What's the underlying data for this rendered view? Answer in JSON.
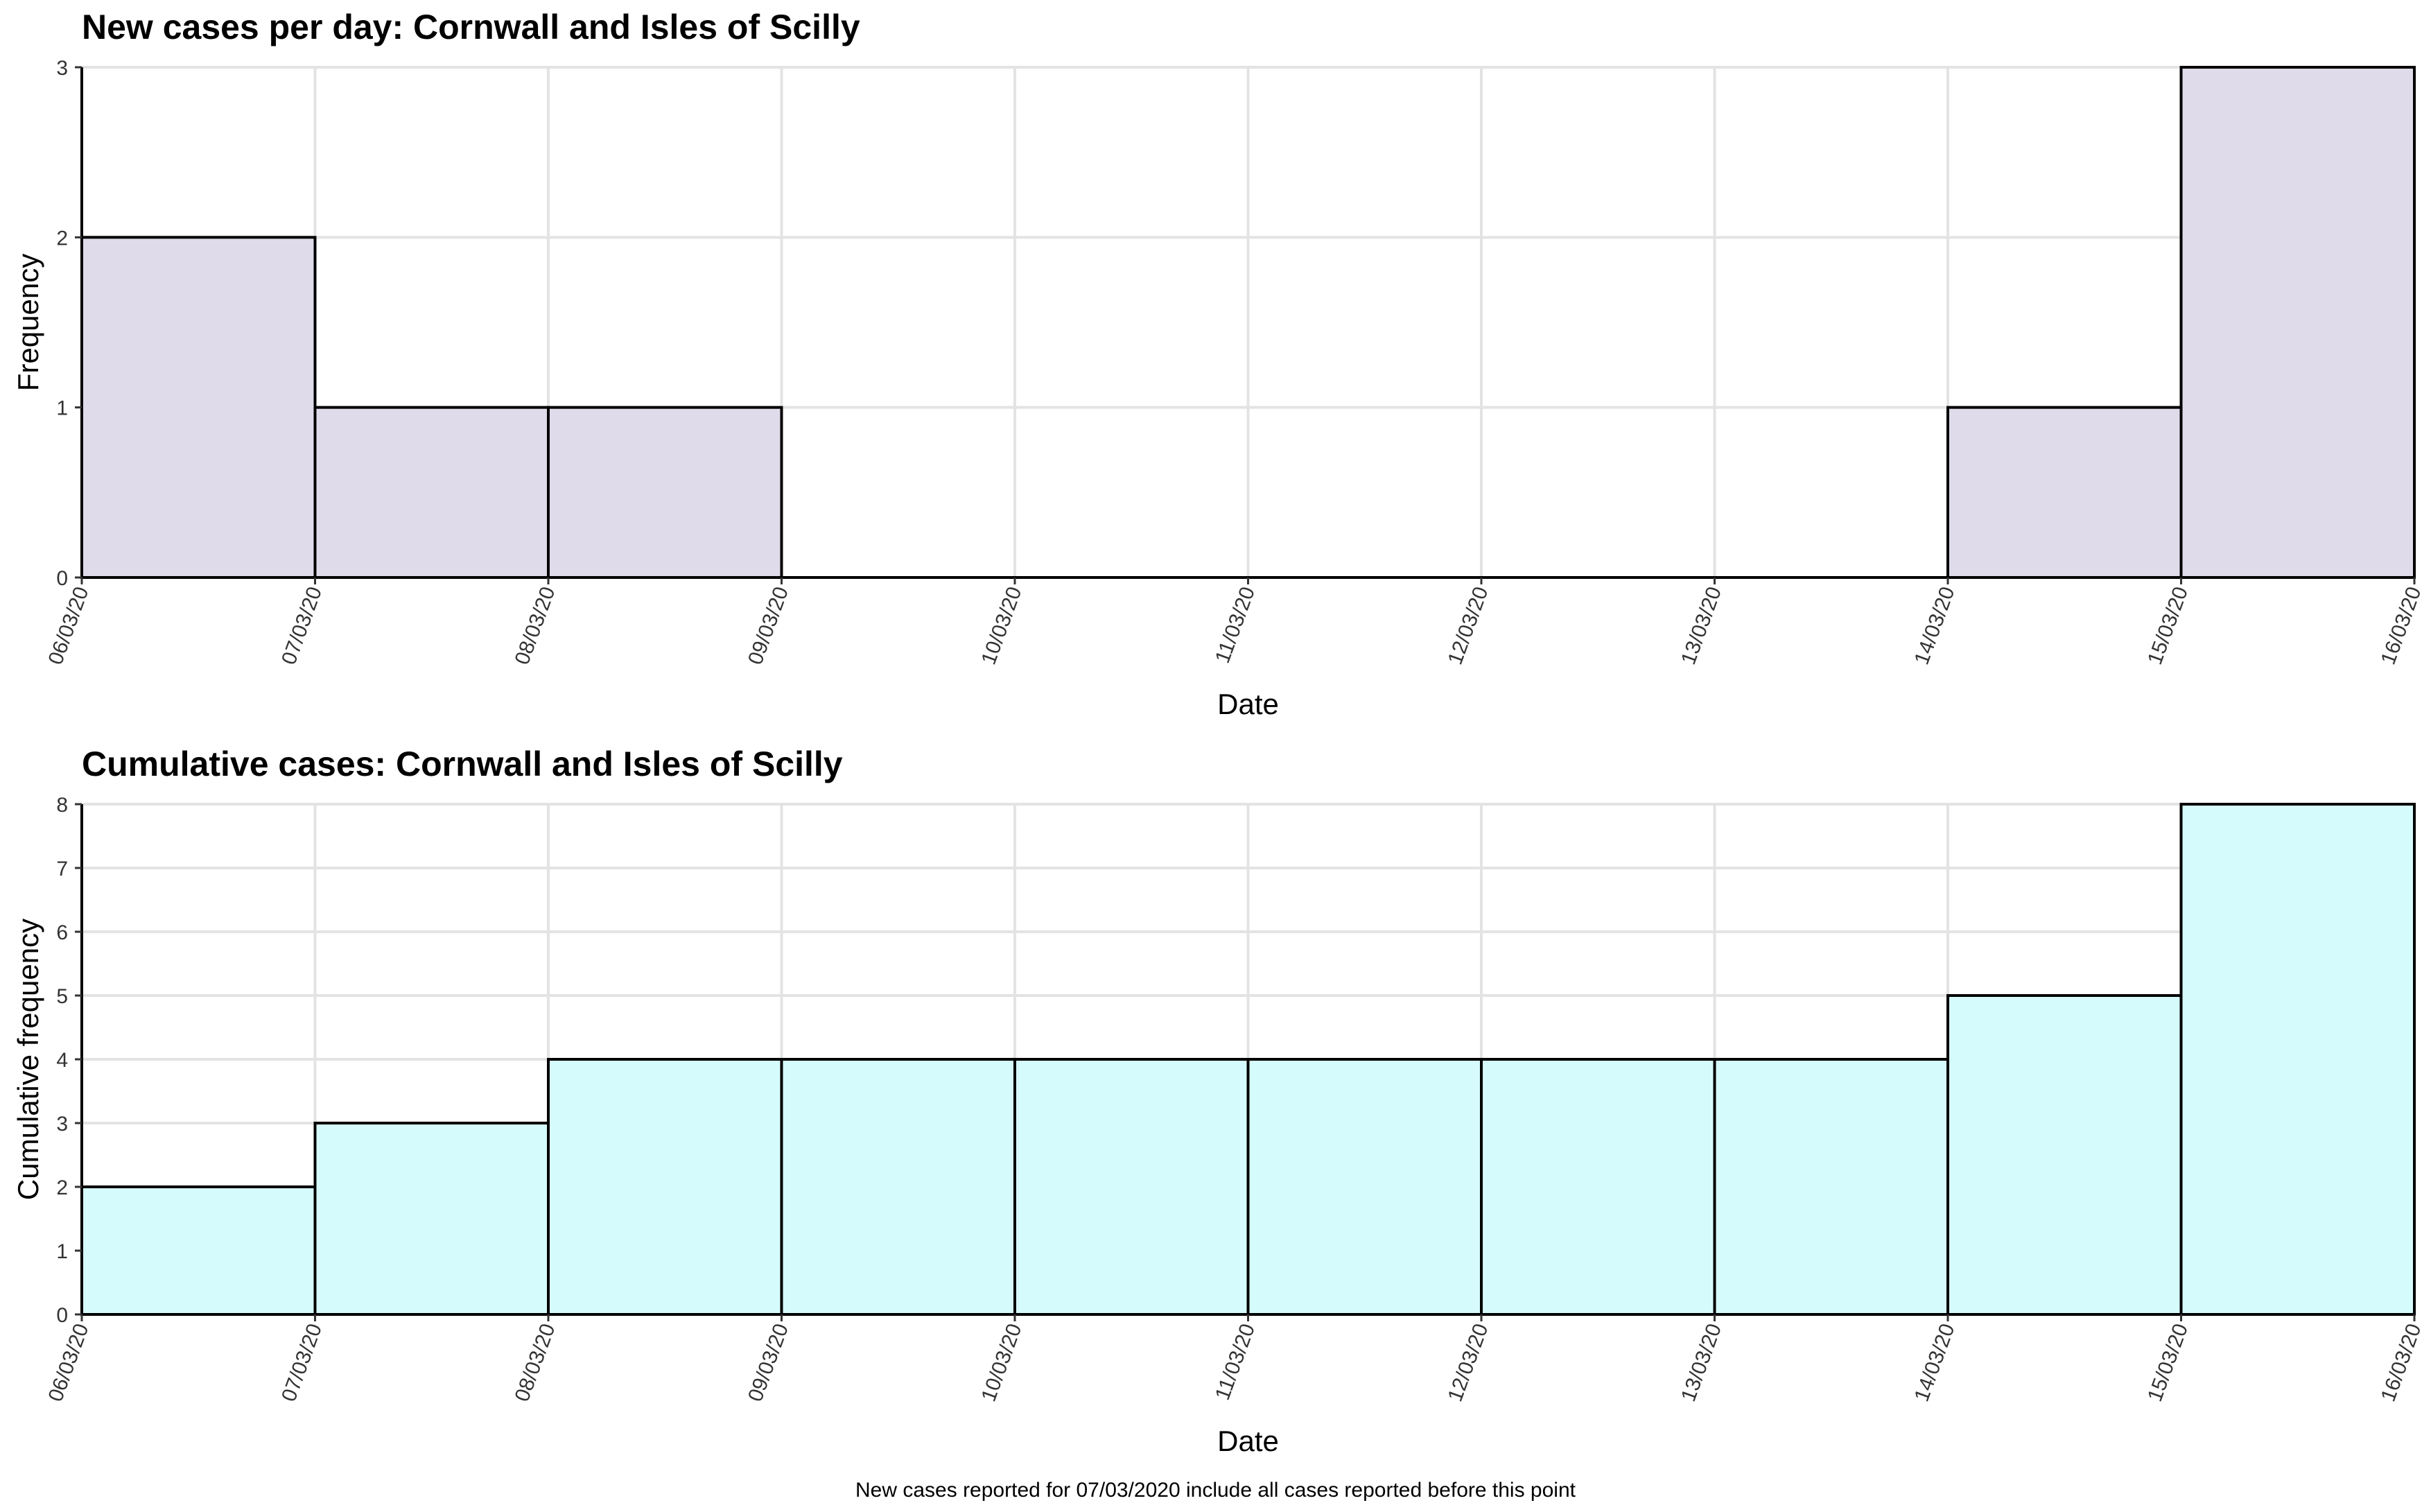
{
  "footnote": "New cases reported for 07/03/2020 include all cases reported before this point",
  "chart_data": [
    {
      "type": "bar",
      "title": "New cases per day: Cornwall and Isles of Scilly",
      "xlabel": "Date",
      "ylabel": "Frequency",
      "ylim": [
        0,
        3
      ],
      "yticks": [
        "0",
        "1",
        "2",
        "3"
      ],
      "grid": true,
      "fill_color": "#e0dbea",
      "edge_color": "#000000",
      "x_tick_labels": [
        "06/03/20",
        "07/03/20",
        "08/03/20",
        "09/03/20",
        "10/03/20",
        "11/03/20",
        "12/03/20",
        "13/03/20",
        "14/03/20",
        "15/03/20",
        "16/03/20"
      ],
      "bins": [
        {
          "start": "06/03/20",
          "end": "07/03/20",
          "value": 2
        },
        {
          "start": "07/03/20",
          "end": "08/03/20",
          "value": 1
        },
        {
          "start": "08/03/20",
          "end": "09/03/20",
          "value": 1
        },
        {
          "start": "09/03/20",
          "end": "10/03/20",
          "value": 0
        },
        {
          "start": "10/03/20",
          "end": "11/03/20",
          "value": 0
        },
        {
          "start": "11/03/20",
          "end": "12/03/20",
          "value": 0
        },
        {
          "start": "12/03/20",
          "end": "13/03/20",
          "value": 0
        },
        {
          "start": "13/03/20",
          "end": "14/03/20",
          "value": 0
        },
        {
          "start": "14/03/20",
          "end": "15/03/20",
          "value": 1
        },
        {
          "start": "15/03/20",
          "end": "16/03/20",
          "value": 3
        }
      ]
    },
    {
      "type": "bar",
      "title": "Cumulative cases: Cornwall and Isles of Scilly",
      "xlabel": "Date",
      "ylabel": "Cumulative frequency",
      "ylim": [
        0,
        8
      ],
      "yticks": [
        "0",
        "1",
        "2",
        "3",
        "4",
        "5",
        "6",
        "7",
        "8"
      ],
      "grid": true,
      "fill_color": "#d6fbfd",
      "edge_color": "#000000",
      "x_tick_labels": [
        "06/03/20",
        "07/03/20",
        "08/03/20",
        "09/03/20",
        "10/03/20",
        "11/03/20",
        "12/03/20",
        "13/03/20",
        "14/03/20",
        "15/03/20",
        "16/03/20"
      ],
      "bins": [
        {
          "start": "06/03/20",
          "end": "07/03/20",
          "value": 2
        },
        {
          "start": "07/03/20",
          "end": "08/03/20",
          "value": 3
        },
        {
          "start": "08/03/20",
          "end": "09/03/20",
          "value": 4
        },
        {
          "start": "09/03/20",
          "end": "10/03/20",
          "value": 4
        },
        {
          "start": "10/03/20",
          "end": "11/03/20",
          "value": 4
        },
        {
          "start": "11/03/20",
          "end": "12/03/20",
          "value": 4
        },
        {
          "start": "12/03/20",
          "end": "13/03/20",
          "value": 4
        },
        {
          "start": "13/03/20",
          "end": "14/03/20",
          "value": 4
        },
        {
          "start": "14/03/20",
          "end": "15/03/20",
          "value": 5
        },
        {
          "start": "15/03/20",
          "end": "16/03/20",
          "value": 8
        }
      ]
    }
  ]
}
